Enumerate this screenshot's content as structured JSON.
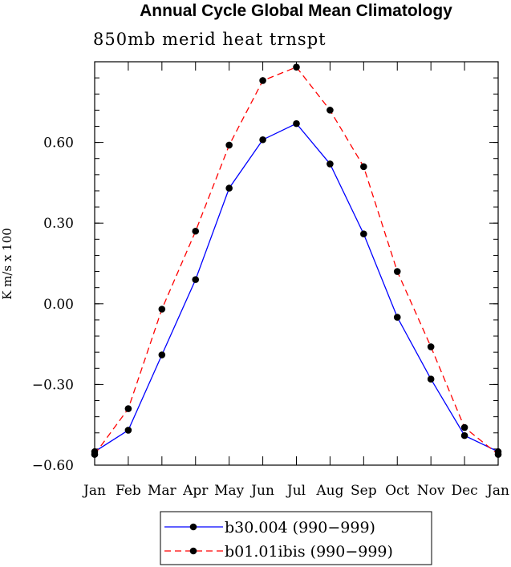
{
  "chart_data": {
    "type": "line",
    "title": "Annual Cycle Global Mean Climatology",
    "subtitle": "850mb merid heat trnspt",
    "ylabel": "K m/s x 100",
    "xlabel": "",
    "categories": [
      "Jan",
      "Feb",
      "Mar",
      "Apr",
      "May",
      "Jun",
      "Jul",
      "Aug",
      "Sep",
      "Oct",
      "Nov",
      "Dec",
      "Jan"
    ],
    "yticks": [
      -0.6,
      -0.3,
      0.0,
      0.3,
      0.6
    ],
    "ytick_labels": [
      "−0.60",
      "−0.30",
      "0.00",
      "0.30",
      "0.60"
    ],
    "ylim": [
      -0.6,
      0.9
    ],
    "grid": false,
    "legend_position": "bottom-center",
    "series": [
      {
        "name": "b30.004 (990−999)",
        "color": "#0000ff",
        "dash": "solid",
        "marker": "circle",
        "values": [
          -0.55,
          -0.47,
          -0.19,
          0.09,
          0.43,
          0.61,
          0.67,
          0.52,
          0.26,
          -0.05,
          -0.28,
          -0.49,
          -0.55
        ]
      },
      {
        "name": "b01.01ibis (990−999)",
        "color": "#ff0000",
        "dash": "dashed",
        "marker": "circle",
        "values": [
          -0.56,
          -0.39,
          -0.02,
          0.27,
          0.59,
          0.83,
          0.88,
          0.72,
          0.51,
          0.12,
          -0.16,
          -0.46,
          -0.56
        ]
      }
    ]
  }
}
